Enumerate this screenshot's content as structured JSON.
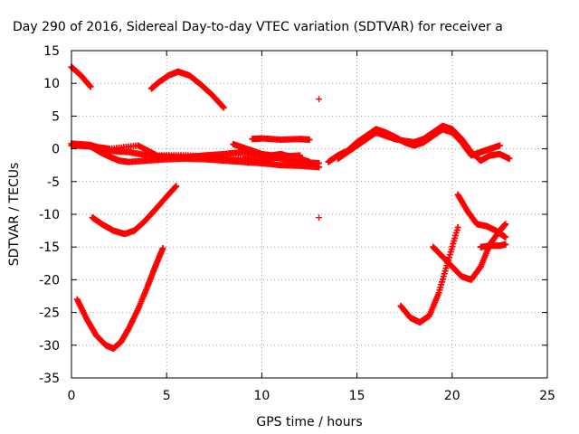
{
  "chart_data": {
    "type": "scatter",
    "title": "Day 290 of 2016, Sidereal Day-to-day VTEC variation (SDTVAR) for receiver a",
    "xlabel": "GPS time / hours",
    "ylabel": "SDTVAR / TECUs",
    "xlim": [
      0,
      25
    ],
    "ylim": [
      -35,
      15
    ],
    "x_ticks": [
      0,
      5,
      10,
      15,
      20,
      25
    ],
    "y_ticks": [
      -35,
      -30,
      -25,
      -20,
      -15,
      -10,
      -5,
      0,
      5,
      10,
      15
    ],
    "grid": true,
    "grid_style": "dotted",
    "legend": "none",
    "marker": "+",
    "color": "#ff0000",
    "series": [
      {
        "values": [
          [
            0.0,
            0.5
          ],
          [
            0.5,
            0.6
          ],
          [
            1.0,
            0.4
          ],
          [
            1.5,
            -0.5
          ],
          [
            2.0,
            -1.2
          ],
          [
            2.5,
            -1.8
          ],
          [
            3.0,
            -2.0
          ],
          [
            4.0,
            -1.8
          ],
          [
            5.0,
            -1.6
          ],
          [
            6.0,
            -1.5
          ],
          [
            7.0,
            -1.6
          ],
          [
            8.0,
            -1.8
          ],
          [
            9.0,
            -2.0
          ],
          [
            10.0,
            -2.2
          ],
          [
            11.0,
            -2.5
          ],
          [
            12.0,
            -2.6
          ],
          [
            13.0,
            -2.8
          ]
        ]
      },
      {
        "values": [
          [
            0.0,
            0.8
          ],
          [
            1.0,
            0.6
          ],
          [
            2.0,
            -0.3
          ],
          [
            3.0,
            -0.5
          ],
          [
            4.0,
            -1.0
          ],
          [
            5.0,
            -1.2
          ],
          [
            6.0,
            -1.3
          ],
          [
            7.0,
            -1.0
          ],
          [
            8.0,
            -0.8
          ],
          [
            9.0,
            -0.5
          ],
          [
            10.0,
            -1.0
          ],
          [
            11.0,
            -1.5
          ],
          [
            12.0,
            -2.0
          ],
          [
            13.0,
            -2.2
          ]
        ]
      },
      {
        "values": [
          [
            0.3,
            0.5
          ],
          [
            0.8,
            0.4
          ],
          [
            1.5,
            0.2
          ],
          [
            2.0,
            0.0
          ],
          [
            3.5,
            0.5
          ],
          [
            4.5,
            -1.0
          ],
          [
            6.0,
            -1.0
          ],
          [
            7.5,
            -1.2
          ],
          [
            9.0,
            -1.5
          ],
          [
            10.0,
            -1.8
          ],
          [
            11.0,
            -1.2
          ],
          [
            12.0,
            -1.0
          ]
        ]
      },
      {
        "values": [
          [
            8.5,
            0.7
          ],
          [
            9.0,
            0.2
          ],
          [
            9.5,
            -0.3
          ],
          [
            10.0,
            -0.8
          ],
          [
            10.5,
            -1.0
          ],
          [
            11.0,
            -0.8
          ],
          [
            11.5,
            -1.2
          ],
          [
            12.0,
            -1.5
          ],
          [
            12.5,
            -2.0
          ]
        ]
      },
      {
        "values": [
          [
            9.5,
            1.5
          ],
          [
            10.0,
            1.6
          ],
          [
            11.0,
            1.4
          ],
          [
            12.0,
            1.5
          ],
          [
            12.5,
            1.4
          ]
        ]
      },
      {
        "values": [
          [
            0.0,
            12.5
          ],
          [
            0.5,
            11.2
          ],
          [
            1.0,
            9.5
          ]
        ]
      },
      {
        "values": [
          [
            4.2,
            9.2
          ],
          [
            4.6,
            10.2
          ],
          [
            5.1,
            11.2
          ],
          [
            5.6,
            11.8
          ],
          [
            6.2,
            11.2
          ],
          [
            6.8,
            9.8
          ],
          [
            7.4,
            8.2
          ],
          [
            8.0,
            6.3
          ]
        ]
      },
      {
        "values": [
          [
            1.1,
            -10.5
          ],
          [
            1.6,
            -11.5
          ],
          [
            2.2,
            -12.5
          ],
          [
            2.8,
            -13.0
          ],
          [
            3.3,
            -12.5
          ],
          [
            3.8,
            -11.2
          ],
          [
            4.4,
            -9.3
          ],
          [
            5.0,
            -7.3
          ],
          [
            5.5,
            -5.7
          ]
        ]
      },
      {
        "values": [
          [
            0.3,
            -23.0
          ],
          [
            0.8,
            -26.0
          ],
          [
            1.3,
            -28.5
          ],
          [
            1.8,
            -30.0
          ],
          [
            2.2,
            -30.5
          ],
          [
            2.6,
            -29.5
          ],
          [
            3.0,
            -27.5
          ],
          [
            3.5,
            -24.5
          ],
          [
            4.0,
            -21.0
          ],
          [
            4.4,
            -18.0
          ],
          [
            4.8,
            -15.2
          ]
        ]
      },
      {
        "values": [
          [
            13.0,
            7.6
          ]
        ]
      },
      {
        "values": [
          [
            13.0,
            -10.5
          ]
        ]
      },
      {
        "values": [
          [
            14.0,
            -1.5
          ],
          [
            14.5,
            -0.5
          ],
          [
            15.0,
            0.5
          ],
          [
            15.5,
            1.5
          ],
          [
            16.0,
            2.5
          ],
          [
            16.5,
            2.0
          ],
          [
            17.0,
            1.5
          ],
          [
            17.5,
            1.2
          ],
          [
            18.0,
            1.0
          ],
          [
            18.5,
            1.5
          ],
          [
            19.0,
            2.5
          ],
          [
            19.5,
            3.5
          ],
          [
            20.0,
            3.0
          ],
          [
            20.5,
            1.5
          ],
          [
            21.0,
            -0.5
          ],
          [
            21.5,
            -1.8
          ],
          [
            22.0,
            -1.0
          ],
          [
            22.5,
            -0.8
          ],
          [
            23.0,
            -1.5
          ]
        ]
      },
      {
        "values": [
          [
            13.5,
            -2.0
          ],
          [
            14.0,
            -1.0
          ],
          [
            14.5,
            -0.3
          ],
          [
            15.0,
            1.0
          ],
          [
            15.5,
            2.0
          ],
          [
            16.0,
            3.0
          ],
          [
            16.5,
            2.5
          ],
          [
            17.0,
            1.8
          ],
          [
            17.5,
            1.0
          ],
          [
            18.0,
            0.5
          ],
          [
            18.5,
            1.0
          ],
          [
            19.0,
            2.0
          ],
          [
            19.5,
            3.0
          ],
          [
            20.0,
            2.5
          ],
          [
            20.5,
            1.0
          ],
          [
            21.0,
            -1.0
          ],
          [
            21.5,
            -0.5
          ],
          [
            22.0,
            0.0
          ],
          [
            22.5,
            0.5
          ]
        ]
      },
      {
        "values": [
          [
            17.3,
            -24.0
          ],
          [
            17.8,
            -25.8
          ],
          [
            18.3,
            -26.5
          ],
          [
            18.8,
            -25.5
          ],
          [
            19.3,
            -22.0
          ],
          [
            19.8,
            -17.0
          ],
          [
            20.3,
            -12.0
          ]
        ]
      },
      {
        "values": [
          [
            19.0,
            -15.0
          ],
          [
            19.5,
            -16.5
          ],
          [
            20.0,
            -18.0
          ],
          [
            20.5,
            -19.5
          ],
          [
            21.0,
            -20.0
          ],
          [
            21.5,
            -18.0
          ],
          [
            22.0,
            -14.5
          ],
          [
            22.5,
            -12.5
          ],
          [
            22.8,
            -11.5
          ]
        ]
      },
      {
        "values": [
          [
            20.3,
            -7.0
          ],
          [
            20.8,
            -9.5
          ],
          [
            21.3,
            -11.5
          ],
          [
            21.8,
            -11.8
          ],
          [
            22.3,
            -12.5
          ],
          [
            22.8,
            -13.5
          ]
        ]
      },
      {
        "values": [
          [
            21.5,
            -15.0
          ],
          [
            22.0,
            -14.8
          ],
          [
            22.5,
            -14.8
          ],
          [
            22.8,
            -14.6
          ]
        ]
      }
    ]
  }
}
